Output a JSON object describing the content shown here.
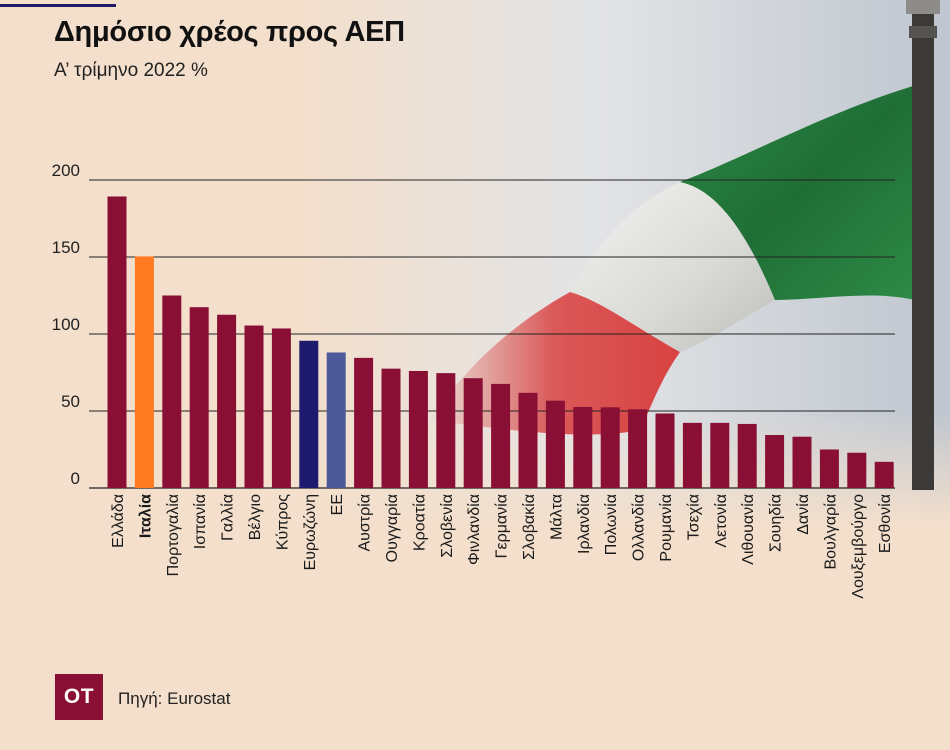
{
  "title": "Δημόσιο χρέος προς ΑΕΠ",
  "subtitle": "Α’ τρίμηνο 2022 %",
  "logo": "ΟΤ",
  "source": "Πηγή: Eurostat",
  "colors": {
    "default": "#8a0f34",
    "highlight": "#ff7a21",
    "eurozone": "#1e1b6e",
    "eu": "#4d5a9a"
  },
  "chart_data": {
    "type": "bar",
    "ylim": [
      0,
      200
    ],
    "yticks": [
      0,
      50,
      100,
      150,
      200
    ],
    "grid": true,
    "categories": [
      "Ελλάδα",
      "Ιταλία",
      "Πορτογαλία",
      "Ισπανία",
      "Γαλλία",
      "Βέλγιο",
      "Κύπρος",
      "Ευρωζώνη",
      "ΕΕ",
      "Αυστρία",
      "Ουγγαρία",
      "Κροατία",
      "Σλοβενία",
      "Φινλανδία",
      "Γερμανία",
      "Σλοβακία",
      "Μάλτα",
      "Ιρλανδία",
      "Πολωνία",
      "Ολλανδία",
      "Ρουμανία",
      "Τσεχία",
      "Λετονία",
      "Λιθουανία",
      "Σουηδία",
      "Δανία",
      "Βουλγαρία",
      "Λουξεμβούργο",
      "Εσθονία"
    ],
    "values": [
      189.3,
      150.4,
      125.0,
      117.4,
      112.5,
      105.5,
      103.6,
      95.6,
      88.0,
      84.5,
      77.5,
      76.0,
      74.6,
      71.3,
      67.6,
      61.8,
      56.7,
      52.6,
      52.4,
      51.1,
      48.4,
      42.3,
      42.3,
      41.6,
      34.4,
      33.3,
      25.0,
      22.9,
      17.0
    ],
    "bar_roles": [
      "default",
      "highlight",
      "default",
      "default",
      "default",
      "default",
      "default",
      "eurozone",
      "eu",
      "default",
      "default",
      "default",
      "default",
      "default",
      "default",
      "default",
      "default",
      "default",
      "default",
      "default",
      "default",
      "default",
      "default",
      "default",
      "default",
      "default",
      "default",
      "default",
      "default"
    ],
    "bold_labels": [
      "Ιταλία"
    ]
  }
}
